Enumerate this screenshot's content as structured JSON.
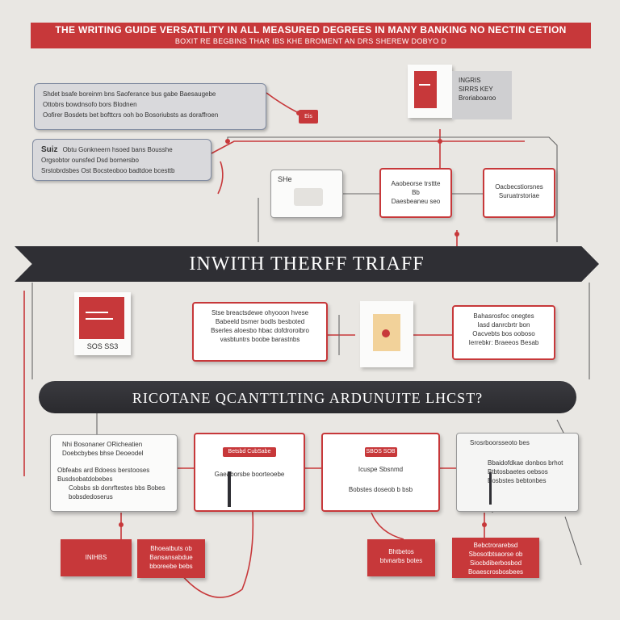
{
  "header": {
    "title": "THE WRITING GUIDE VERSATILITY IN ALL MEASURED DEGREES IN MANY BANKING NO NECTIN CETION",
    "subtitle": "BOXIT RE BEGBINS THAR IBS KHE BROMENT AN DRS SHEREW DOBYO D"
  },
  "top": {
    "box_a_lines": [
      "Shdet bsafe boreinm bns Saoferance bus gabe Baesaugebe",
      "Ottobrs bowdnsofo bors Blodnen",
      "Oofirer Bosdets bet bofttcrs ooh bo Bosoriubsts as doraffroen"
    ],
    "box_b_lines": [
      "Obtu Gonkneern hsoed bans Bousshe",
      "Orgsobtor ounsfed Dsd bornersbo",
      "Srstobrdsbes Ost Bocsteoboo badtdoe bcesttb"
    ],
    "box_b_tag": "Suiz",
    "small_tag": "Eis",
    "doc_note_lines": [
      "INGRIS",
      "SIRRS KEY",
      "Broriaboaroo"
    ]
  },
  "row1": {
    "card_1_label": "SHe",
    "card_2_lines": [
      "Aaobeorse trsttte",
      "Bb",
      "Daesbeaneu seo"
    ],
    "card_3_lines": [
      "Oacbecstiorsnes",
      "Suruatrstoriae"
    ]
  },
  "banner_1": "INWITH THERFF TRIAFF",
  "row2": {
    "doc_caption": "SOS SS3",
    "card_left_lines": [
      "Stse breactsdewe ohyooon hvese",
      "Babeeld bsmer bodls besboted",
      "Bserles aloesbo hbac dofdroroibro",
      "vasbtuntrs boobe barastnbs"
    ],
    "card_right_lines": [
      "Bahasrosfoc onegtes",
      "Iasd danrcbrtr bon",
      "Oacvebts bos ooboso",
      "Ierrebkr: Braeeos Besab"
    ]
  },
  "banner_2": "RICOTANE QCANTTLTING ARDUNUITE LHCST?",
  "row3": {
    "card_1_lines": [
      "Nhi Bosonaner ORicheatien",
      "Doebcbybes bhse Deoeodel",
      "Obfeabs ard Bdoess berstooses",
      "Busdsobatdobebes",
      "Cobsbs sb donrftestes bbs Bobes bobsdedoserus"
    ],
    "card_2_tag": "Betsbd CubSabe",
    "card_2_line": "Gaeaborsbe boorteoebe",
    "card_3_tag": "SBOS SOB",
    "card_3_lines": [
      "Icuspe Sbsnmd",
      "Bobstes doseob b bsb"
    ],
    "card_4_lines": [
      "Srosrboorsseoto bes",
      "Bbaidofdkae donbos brhot",
      "Btbtosbaetes oebsos",
      "Bosbstes bebtonbes"
    ]
  },
  "bottom": {
    "red_1": "INIHBS",
    "red_2_lines": [
      "Bhoeatbuts ob",
      "Bansansabdue",
      "bboreebe bebs"
    ],
    "red_3_lines": [
      "Bhtbetos",
      "btvnarbs botes"
    ],
    "red_4_lines": [
      "Bebctrorarebsd",
      "Sbosotbtsaorse ob",
      "Siocbdiberbosbod",
      "Boaescrosbosbees"
    ]
  },
  "colors": {
    "accent": "#c7383a",
    "banner": "#2f2f34",
    "background": "#e9e7e3"
  }
}
